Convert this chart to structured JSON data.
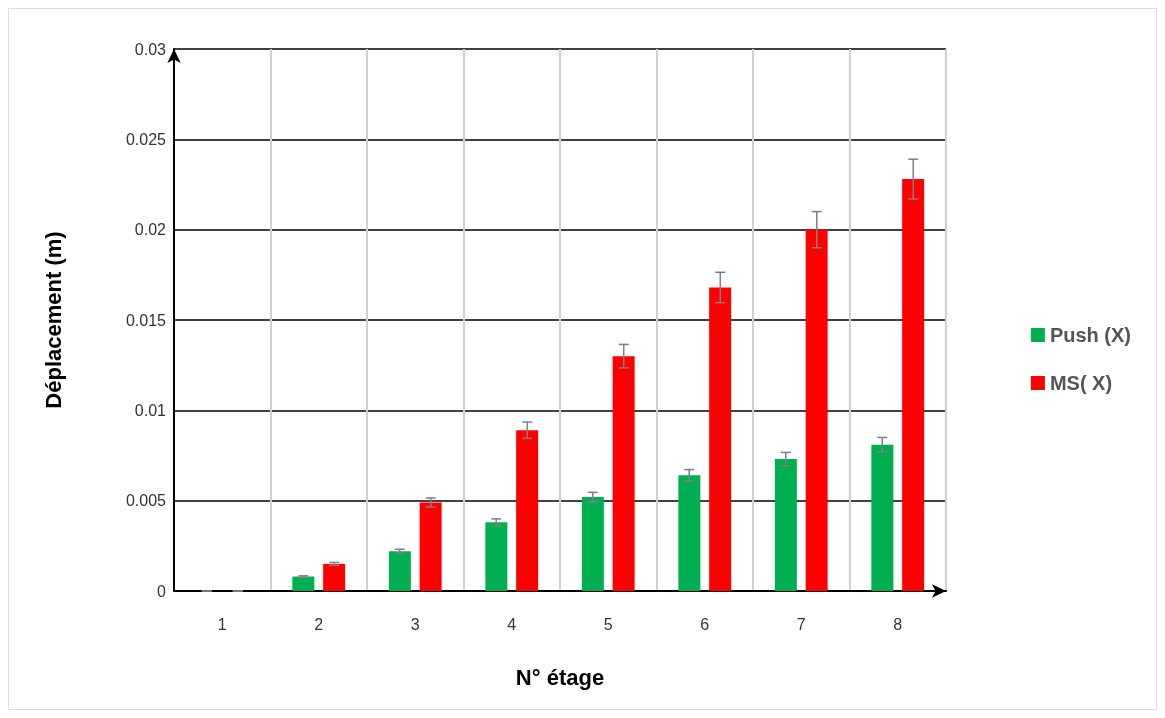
{
  "chart_data": {
    "type": "bar",
    "xlabel": "N° étage",
    "ylabel": "Déplacement (m)",
    "categories": [
      "1",
      "2",
      "3",
      "4",
      "5",
      "6",
      "7",
      "8"
    ],
    "series": [
      {
        "name": "Push (X)",
        "color": "#00b050",
        "values": [
          0,
          0.0008,
          0.0022,
          0.0038,
          0.0052,
          0.0064,
          0.0073,
          0.0081
        ],
        "errors": [
          0,
          4e-05,
          0.00011,
          0.00019,
          0.00026,
          0.00032,
          0.00037,
          0.0004
        ]
      },
      {
        "name": "MS( X)",
        "color": "#ff0000",
        "values": [
          0,
          0.0015,
          0.0049,
          0.0089,
          0.013,
          0.0168,
          0.02,
          0.0228
        ],
        "errors": [
          0,
          8e-05,
          0.00025,
          0.00045,
          0.00065,
          0.00084,
          0.001,
          0.0011
        ]
      }
    ],
    "ylim": [
      0,
      0.03
    ],
    "yticks": [
      0,
      0.005,
      0.01,
      0.015,
      0.02,
      0.025,
      0.03
    ],
    "grid": true,
    "legend": "right"
  }
}
